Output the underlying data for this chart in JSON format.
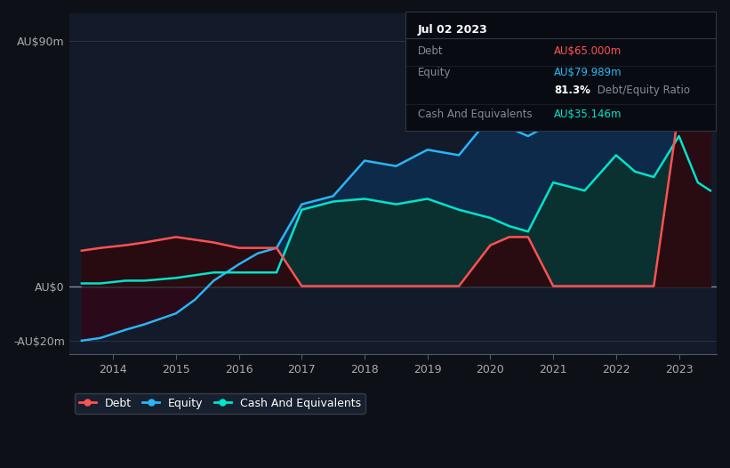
{
  "bg_color": "#0d1117",
  "plot_bg_color": "#131b2a",
  "years": [
    2013.5,
    2013.8,
    2014.2,
    2014.5,
    2015.0,
    2015.3,
    2015.6,
    2016.0,
    2016.3,
    2016.6,
    2017.0,
    2017.5,
    2018.0,
    2018.5,
    2019.0,
    2019.5,
    2020.0,
    2020.3,
    2020.6,
    2021.0,
    2021.5,
    2022.0,
    2022.3,
    2022.6,
    2023.0,
    2023.3,
    2023.5
  ],
  "equity": [
    -20,
    -19,
    -16,
    -14,
    -10,
    -5,
    2,
    8,
    12,
    14,
    30,
    33,
    46,
    44,
    50,
    48,
    62,
    58,
    55,
    60,
    58,
    65,
    64,
    63,
    92,
    85,
    80
  ],
  "cash": [
    1,
    1,
    2,
    2,
    3,
    4,
    5,
    5,
    5,
    5,
    28,
    31,
    32,
    30,
    32,
    28,
    25,
    22,
    20,
    38,
    35,
    48,
    42,
    40,
    55,
    38,
    35
  ],
  "debt": [
    13,
    14,
    15,
    16,
    18,
    17,
    16,
    14,
    14,
    14,
    0,
    0,
    0,
    0,
    0,
    0,
    15,
    18,
    18,
    0,
    0,
    0,
    0,
    0,
    65,
    65,
    65
  ],
  "equity_color": "#29b6f6",
  "cash_color": "#00e5cc",
  "debt_color": "#ff5252",
  "equity_fill": "#0d2a4a",
  "cash_fill": "#0a3030",
  "debt_neg_fill": "#2a0a1a",
  "ylim": [
    -25,
    100
  ],
  "xlim": [
    2013.3,
    2023.6
  ],
  "yticks": [
    -20,
    0,
    90
  ],
  "ytick_labels": [
    "-AU$20m",
    "AU$0",
    "AU$90m"
  ],
  "xticks": [
    2014,
    2015,
    2016,
    2017,
    2018,
    2019,
    2020,
    2021,
    2022,
    2023
  ],
  "xtick_labels": [
    "2014",
    "2015",
    "2016",
    "2017",
    "2018",
    "2019",
    "2020",
    "2021",
    "2022",
    "2023"
  ],
  "tooltip_title": "Jul 02 2023",
  "tooltip_debt_label": "Debt",
  "tooltip_debt_value": "AU$65.000m",
  "tooltip_debt_color": "#ff5252",
  "tooltip_equity_label": "Equity",
  "tooltip_equity_value": "AU$79.989m",
  "tooltip_equity_color": "#29b6f6",
  "tooltip_ratio": "81.3%",
  "tooltip_ratio_suffix": " Debt/Equity Ratio",
  "tooltip_cash_label": "Cash And Equivalents",
  "tooltip_cash_value": "AU$35.146m",
  "tooltip_cash_color": "#00e5cc",
  "legend_entries": [
    {
      "label": "Debt",
      "color": "#ff5252"
    },
    {
      "label": "Equity",
      "color": "#29b6f6"
    },
    {
      "label": "Cash And Equivalents",
      "color": "#00e5cc"
    }
  ]
}
